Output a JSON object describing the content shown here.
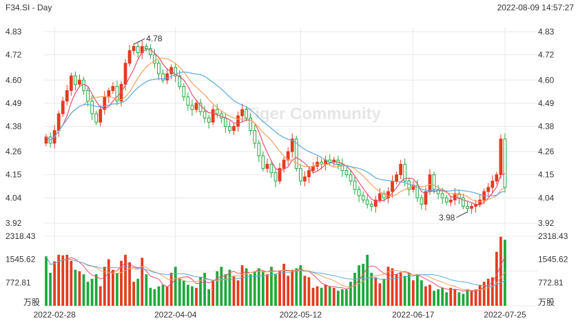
{
  "header": {
    "symbol_period": "F34.SI - Day",
    "datetime": "2022-08-09 14:57:27"
  },
  "watermark": "Tiger Community",
  "colors": {
    "up": "#e53b1f",
    "down": "#1fa83a",
    "ma5": "#e84d6c",
    "ma10": "#f2a05c",
    "ma20": "#5aa9dd",
    "grid": "#e8e8e8"
  },
  "chart_data": {
    "type": "candlestick",
    "price_axis": {
      "ticks": [
        "4.83",
        "4.72",
        "4.60",
        "4.49",
        "4.38",
        "4.26",
        "4.15",
        "4.04",
        "3.92"
      ],
      "ylim": [
        3.92,
        4.83
      ]
    },
    "volume_axis": {
      "ticks": [
        "2318.43",
        "1545.62",
        "772.81"
      ],
      "unit": "万股",
      "ylim": [
        0,
        2318.43
      ]
    },
    "x_ticks": [
      "2022-02-28",
      "2022-04-04",
      "2022-05-12",
      "2022-06-17",
      "2022-07-25"
    ],
    "annotations": [
      {
        "text": "4.78",
        "at": "high"
      },
      {
        "text": "3.98",
        "at": "low"
      }
    ],
    "close": [
      4.33,
      4.3,
      4.36,
      4.44,
      4.5,
      4.55,
      4.62,
      4.58,
      4.6,
      4.55,
      4.5,
      4.44,
      4.4,
      4.46,
      4.52,
      4.55,
      4.57,
      4.5,
      4.58,
      4.68,
      4.74,
      4.76,
      4.73,
      4.76,
      4.75,
      4.72,
      4.68,
      4.63,
      4.6,
      4.63,
      4.66,
      4.62,
      4.57,
      4.52,
      4.48,
      4.46,
      4.49,
      4.45,
      4.42,
      4.4,
      4.46,
      4.44,
      4.42,
      4.38,
      4.36,
      4.38,
      4.43,
      4.46,
      4.42,
      4.36,
      4.3,
      4.24,
      4.18,
      4.2,
      4.16,
      4.12,
      4.18,
      4.22,
      4.26,
      4.32,
      4.18,
      4.12,
      4.14,
      4.17,
      4.19,
      4.21,
      4.2,
      4.22,
      4.21,
      4.22,
      4.2,
      4.17,
      4.15,
      4.12,
      4.08,
      4.05,
      4.03,
      4.01,
      4.0,
      4.03,
      4.06,
      4.04,
      4.07,
      4.12,
      4.15,
      4.2,
      4.12,
      4.08,
      4.1,
      4.04,
      4.01,
      4.07,
      4.15,
      4.08,
      4.06,
      4.04,
      4.02,
      4.03,
      4.06,
      4.04,
      4.0,
      3.99,
      4.0,
      4.01,
      4.03,
      4.07,
      4.09,
      4.12,
      4.15,
      4.32,
      4.09
    ],
    "volume": [
      1650,
      1100,
      1480,
      1700,
      1680,
      1700,
      1500,
      1200,
      1150,
      1050,
      800,
      900,
      1050,
      650,
      1300,
      1550,
      1200,
      1100,
      1500,
      1700,
      1450,
      800,
      900,
      1600,
      1050,
      600,
      550,
      650,
      700,
      650,
      1100,
      1300,
      900,
      850,
      700,
      650,
      600,
      950,
      1100,
      550,
      850,
      1150,
      1300,
      1050,
      1200,
      1000,
      850,
      1350,
      1250,
      1050,
      1150,
      1250,
      1150,
      1050,
      1300,
      1050,
      1150,
      1400,
      1000,
      1200,
      1250,
      1350,
      1000,
      950,
      600,
      650,
      600,
      700,
      650,
      600,
      500,
      550,
      550,
      800,
      1100,
      1350,
      1400,
      1700,
      1100,
      950,
      750,
      900,
      1300,
      1250,
      1050,
      1100,
      1000,
      1100,
      850,
      1050,
      850,
      650,
      700,
      500,
      550,
      600,
      450,
      600,
      550,
      450,
      400,
      550,
      500,
      550,
      700,
      800,
      900,
      950,
      1800,
      2300,
      2200
    ]
  }
}
